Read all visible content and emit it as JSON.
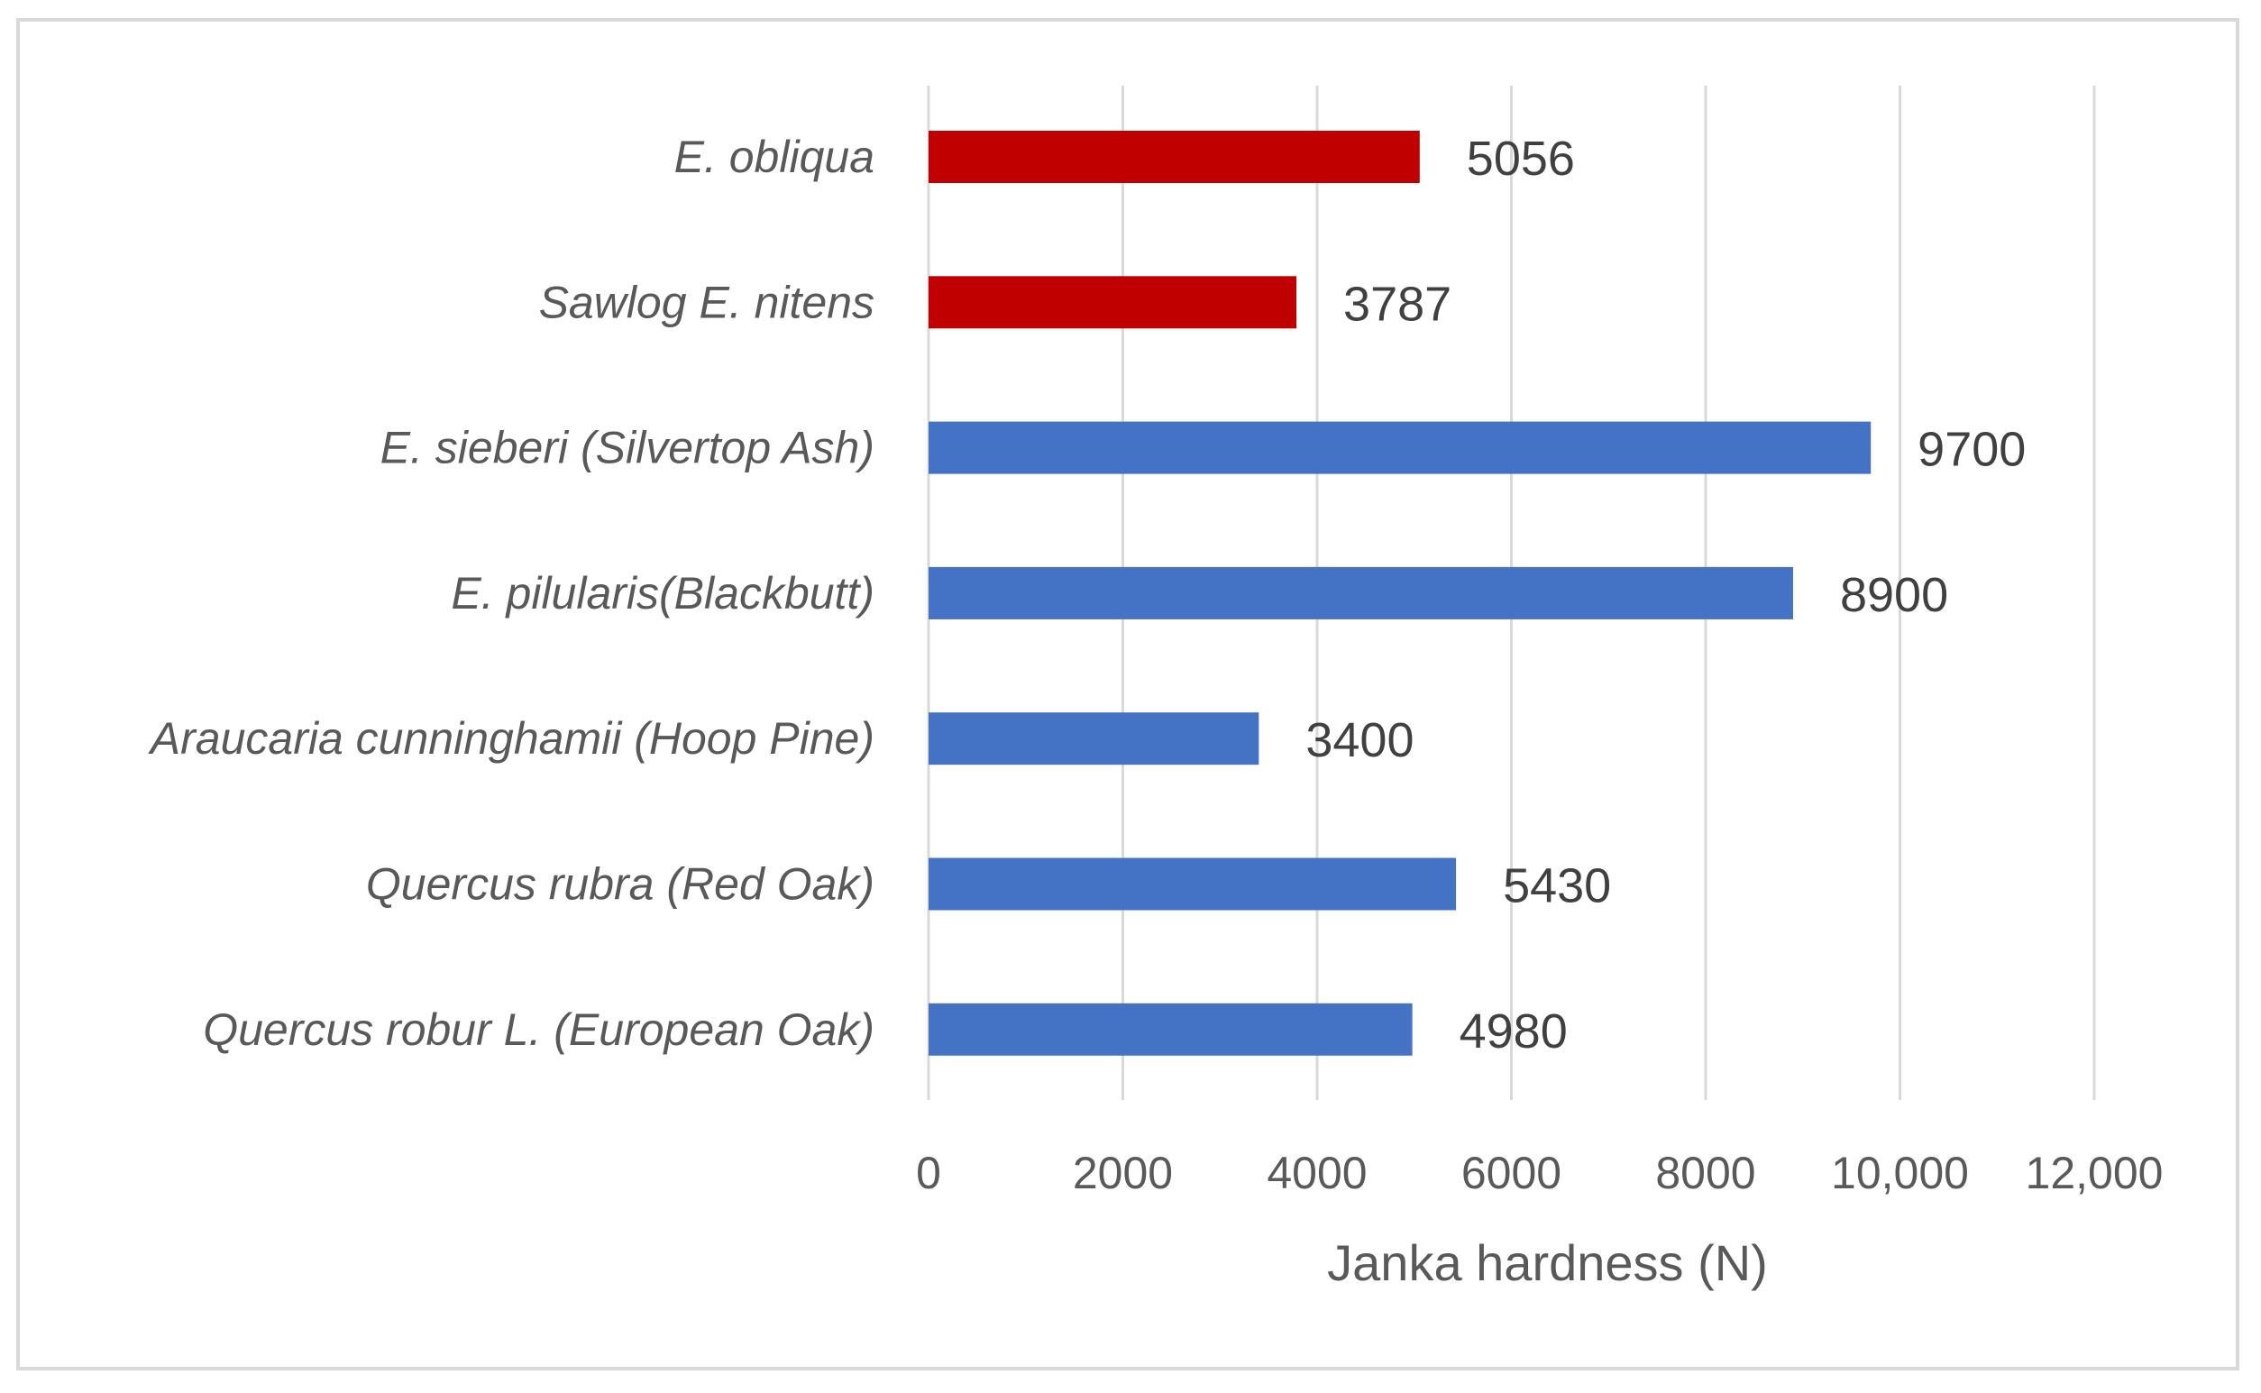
{
  "chart_data": {
    "type": "bar",
    "orientation": "horizontal",
    "categories": [
      "E. obliqua",
      "Sawlog E. nitens",
      "E. sieberi (Silvertop Ash)",
      "E. pilularis(Blackbutt)",
      "Araucaria cunninghamii (Hoop Pine)",
      "Quercus rubra (Red Oak)",
      "Quercus robur L. (European Oak)"
    ],
    "values": [
      5056,
      3787,
      9700,
      8900,
      3400,
      5430,
      4980
    ],
    "value_labels": [
      "5056",
      "3787",
      "9700",
      "8900",
      "3400",
      "5430",
      "4980"
    ],
    "bar_colors": [
      "#c00000",
      "#c00000",
      "#4472c4",
      "#4472c4",
      "#4472c4",
      "#4472c4",
      "#4472c4"
    ],
    "xlabel": "Janka hardness (N)",
    "ylabel": "",
    "title": "",
    "xlim": [
      0,
      12000
    ],
    "x_ticks": [
      0,
      2000,
      4000,
      6000,
      8000,
      10000,
      12000
    ],
    "x_tick_labels": [
      "0",
      "2000",
      "4000",
      "6000",
      "8000",
      "10,000",
      "12,000"
    ],
    "grid": "vertical",
    "legend": "none"
  }
}
